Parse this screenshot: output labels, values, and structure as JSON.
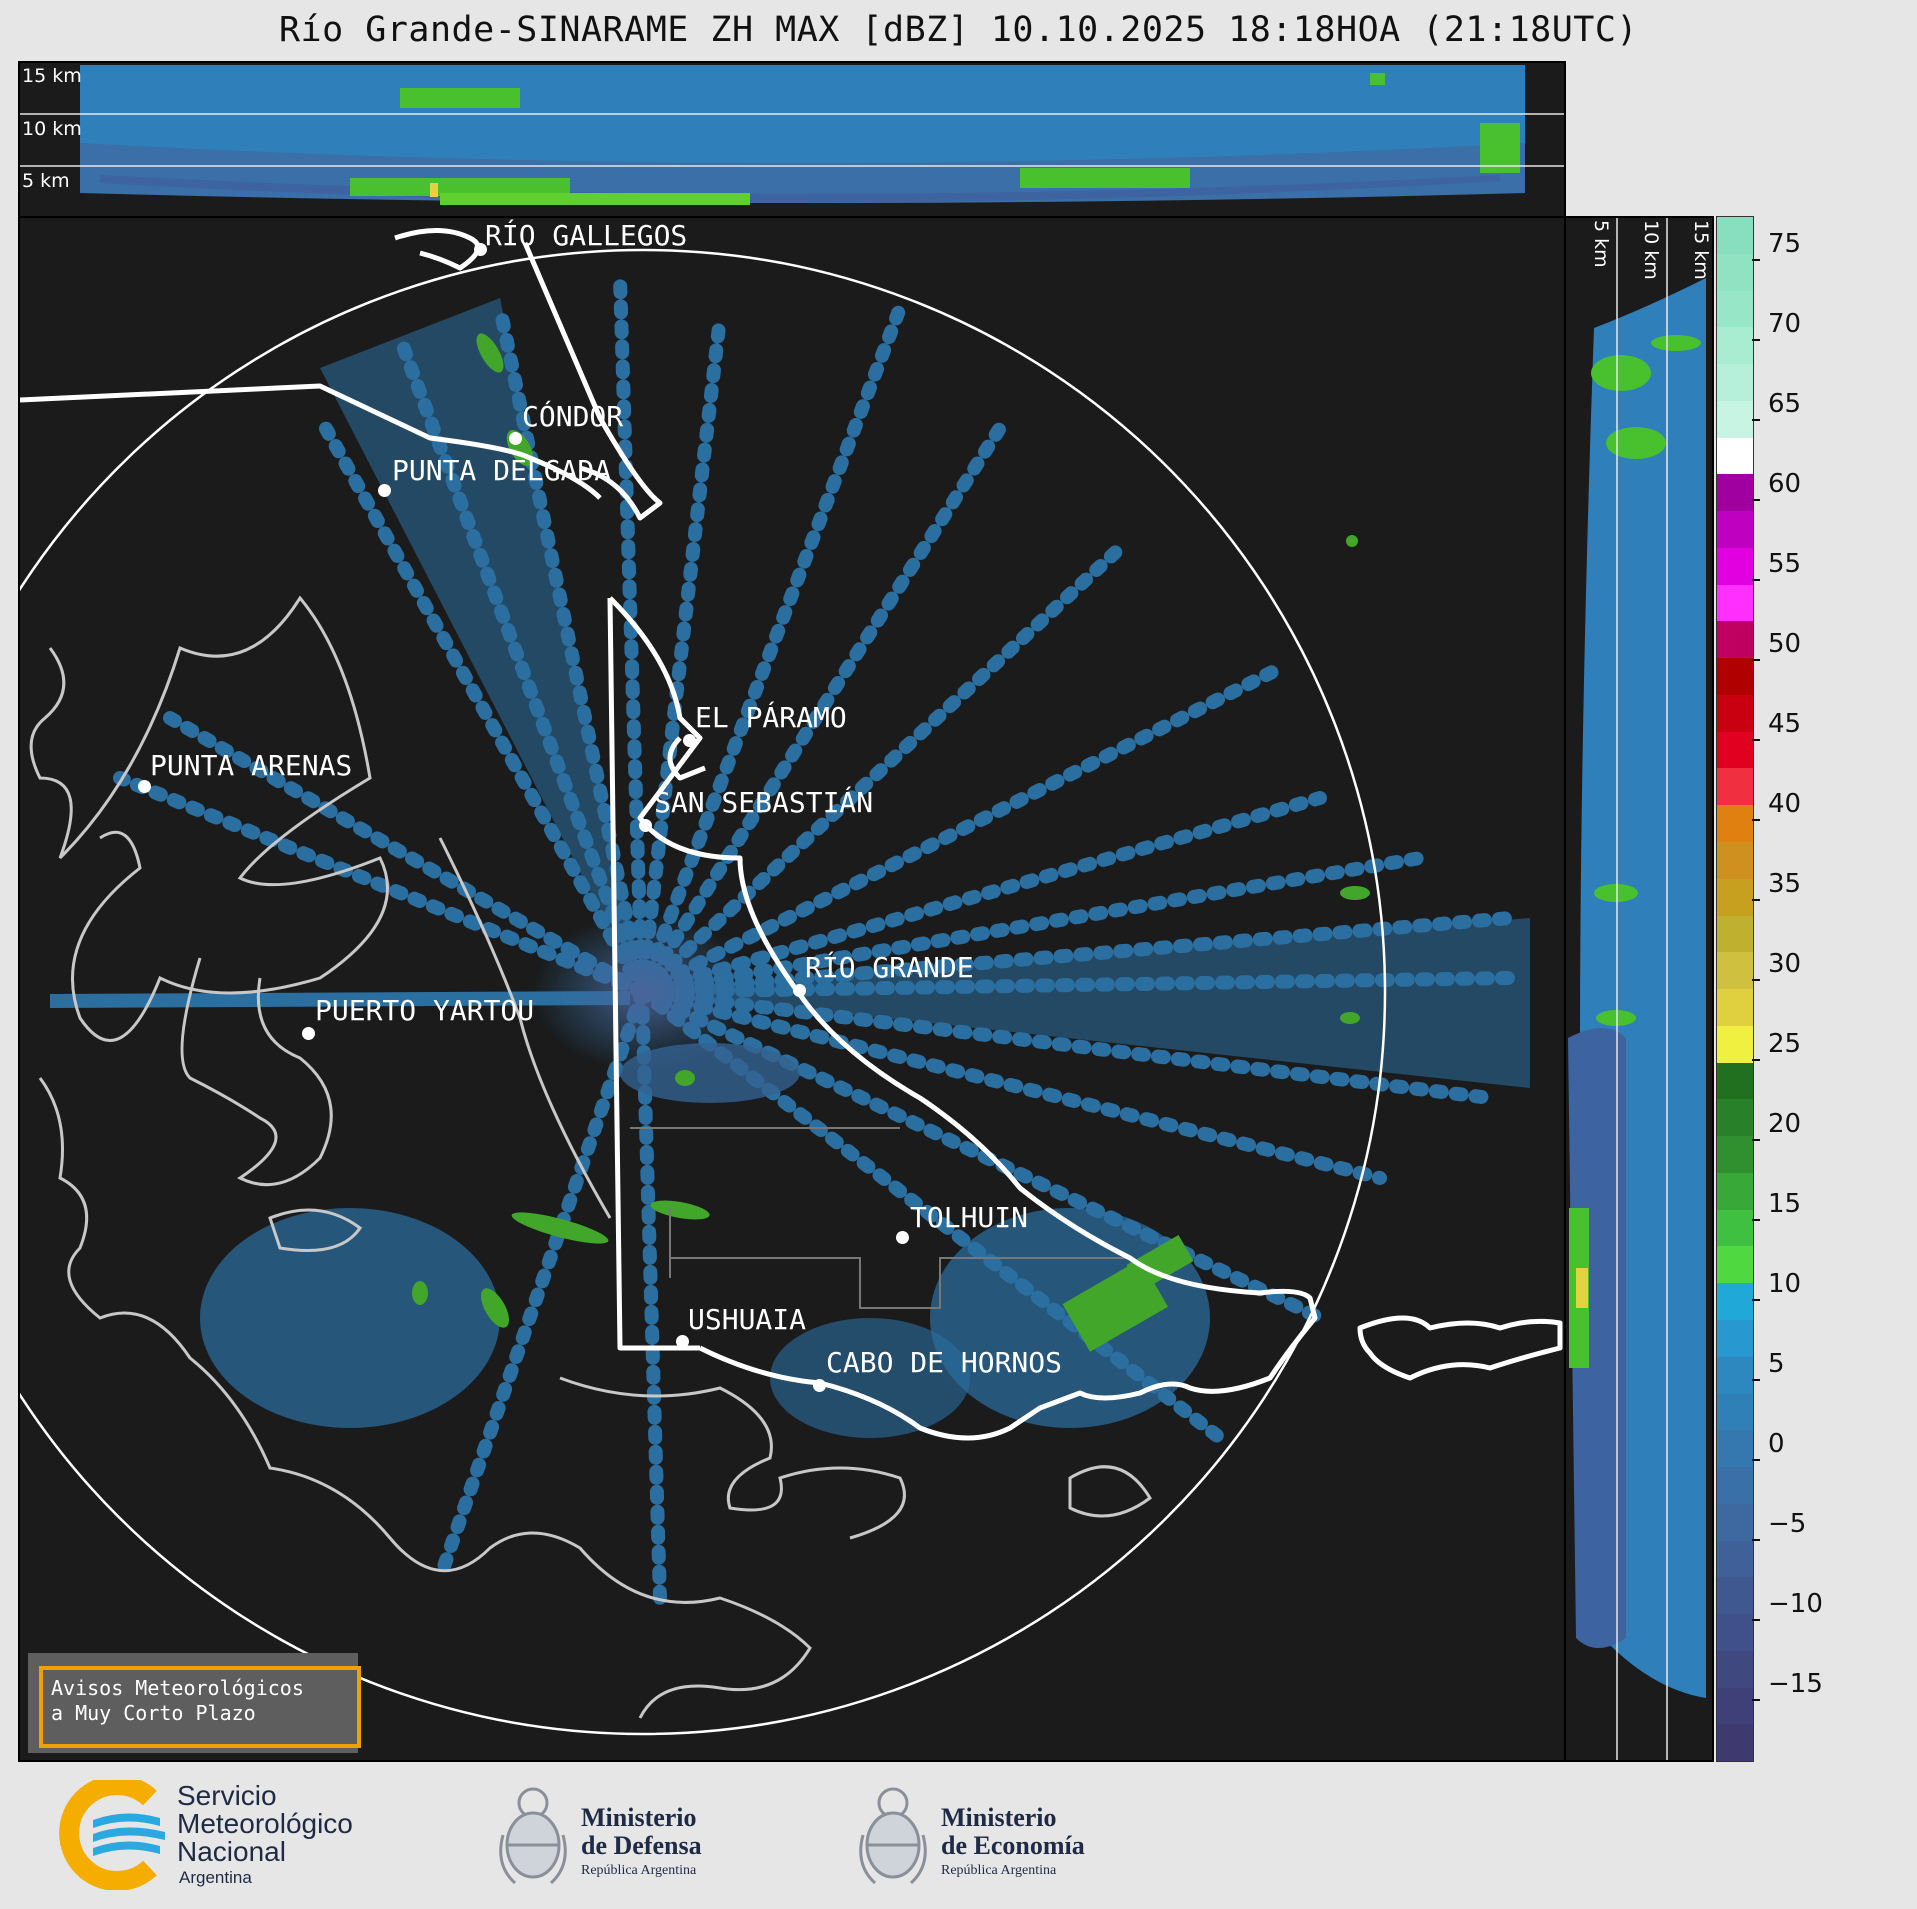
{
  "title": "Río Grande-SINARAME ZH MAX [dBZ] 10.10.2025 18:18HOA (21:18UTC)",
  "top_panel": {
    "height_labels": [
      "15 km",
      "10 km",
      "5 km"
    ]
  },
  "side_panel": {
    "height_labels": [
      "5 km",
      "10 km",
      "15 km"
    ]
  },
  "colorbar": {
    "ticks": [
      "75",
      "70",
      "65",
      "60",
      "55",
      "50",
      "45",
      "40",
      "35",
      "30",
      "25",
      "20",
      "15",
      "10",
      "5",
      "0",
      "−5",
      "−10",
      "−15"
    ],
    "colors": [
      "#88dfc0",
      "#8fe3c3",
      "#96e6c7",
      "#a8ecd2",
      "#b6f0da",
      "#c8f5e3",
      "#ffffff",
      "#a000a0",
      "#c000c0",
      "#e000e0",
      "#ff30ff",
      "#c00060",
      "#b00000",
      "#c80010",
      "#e00020",
      "#f03040",
      "#e08010",
      "#d09020",
      "#c8a020",
      "#c0b030",
      "#d0c040",
      "#e0d040",
      "#f0f040",
      "#207020",
      "#288028",
      "#309030",
      "#38a838",
      "#40c040",
      "#50d840",
      "#20a8d8",
      "#2898d0",
      "#2d88c0",
      "#3080b8",
      "#3578b0",
      "#3a70a8",
      "#3e68a0",
      "#3f6098",
      "#405890",
      "#405088",
      "#404880",
      "#3f4078",
      "#3e3a70"
    ]
  },
  "cities": [
    {
      "name": "RÍO GALLEGOS"
    },
    {
      "name": "CÓNDOR"
    },
    {
      "name": "PUNTA DELGADA"
    },
    {
      "name": "EL PÁRAMO"
    },
    {
      "name": "SAN SEBASTIÁN"
    },
    {
      "name": "PUNTA ARENAS"
    },
    {
      "name": "RÍO GRANDE"
    },
    {
      "name": "PUERTO YARTOU"
    },
    {
      "name": "TOLHUIN"
    },
    {
      "name": "USHUAIA"
    },
    {
      "name": "CABO DE HORNOS"
    }
  ],
  "notice": {
    "line1": "Avisos Meteorológicos",
    "line2": "a Muy Corto Plazo"
  },
  "logos": {
    "smn": {
      "line1": "Servicio",
      "line2": "Meteorológico",
      "line3": "Nacional",
      "line4": "Argentina"
    },
    "defensa": {
      "line1": "Ministerio",
      "line2": "de Defensa",
      "line3": "República Argentina"
    },
    "economia": {
      "line1": "Ministerio",
      "line2": "de Economía",
      "line3": "República Argentina"
    }
  }
}
